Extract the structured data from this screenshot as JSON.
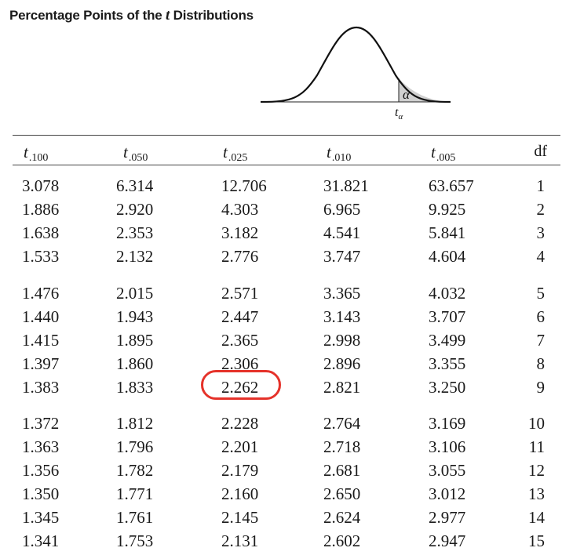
{
  "title": {
    "prefix": "Percentage Points of the ",
    "italic": "t",
    "suffix": " Distributions"
  },
  "figure": {
    "alpha_label": "α",
    "t_label": "t",
    "t_sub": "α"
  },
  "columns": [
    {
      "t": "t",
      "sub": ".100"
    },
    {
      "t": "t",
      "sub": ".050"
    },
    {
      "t": "t",
      "sub": ".025"
    },
    {
      "t": "t",
      "sub": ".010"
    },
    {
      "t": "t",
      "sub": ".005"
    }
  ],
  "df_header": "df",
  "rows": [
    {
      "v": [
        "3.078",
        "6.314",
        "12.706",
        "31.821",
        "63.657"
      ],
      "df": "1"
    },
    {
      "v": [
        "1.886",
        "2.920",
        "4.303",
        "6.965",
        "9.925"
      ],
      "df": "2"
    },
    {
      "v": [
        "1.638",
        "2.353",
        "3.182",
        "4.541",
        "5.841"
      ],
      "df": "3"
    },
    {
      "v": [
        "1.533",
        "2.132",
        "2.776",
        "3.747",
        "4.604"
      ],
      "df": "4"
    },
    {
      "v": [
        "1.476",
        "2.015",
        "2.571",
        "3.365",
        "4.032"
      ],
      "df": "5"
    },
    {
      "v": [
        "1.440",
        "1.943",
        "2.447",
        "3.143",
        "3.707"
      ],
      "df": "6"
    },
    {
      "v": [
        "1.415",
        "1.895",
        "2.365",
        "2.998",
        "3.499"
      ],
      "df": "7"
    },
    {
      "v": [
        "1.397",
        "1.860",
        "2.306",
        "2.896",
        "3.355"
      ],
      "df": "8"
    },
    {
      "v": [
        "1.383",
        "1.833",
        "2.262",
        "2.821",
        "3.250"
      ],
      "df": "9"
    },
    {
      "v": [
        "1.372",
        "1.812",
        "2.228",
        "2.764",
        "3.169"
      ],
      "df": "10"
    },
    {
      "v": [
        "1.363",
        "1.796",
        "2.201",
        "2.718",
        "3.106"
      ],
      "df": "11"
    },
    {
      "v": [
        "1.356",
        "1.782",
        "2.179",
        "2.681",
        "3.055"
      ],
      "df": "12"
    },
    {
      "v": [
        "1.350",
        "1.771",
        "2.160",
        "2.650",
        "3.012"
      ],
      "df": "13"
    },
    {
      "v": [
        "1.345",
        "1.761",
        "2.145",
        "2.624",
        "2.977"
      ],
      "df": "14"
    },
    {
      "v": [
        "1.341",
        "1.753",
        "2.131",
        "2.602",
        "2.947"
      ],
      "df": "15"
    }
  ],
  "highlight": {
    "row": 8,
    "col": 2,
    "color": "#e5322a"
  }
}
